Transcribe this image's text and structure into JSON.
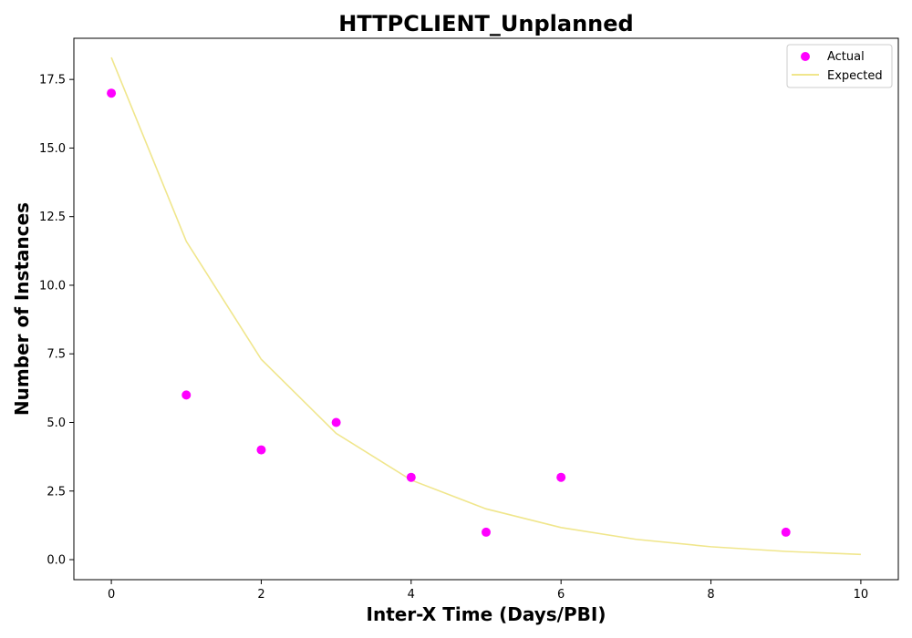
{
  "chart_data": {
    "type": "scatter",
    "title": "HTTPCLIENT_Unplanned",
    "xlabel": "Inter-X Time (Days/PBI)",
    "ylabel": "Number of Instances",
    "xlim": [
      -0.5,
      10.5
    ],
    "ylim": [
      -0.73,
      19.0
    ],
    "x_ticks": [
      0,
      2,
      4,
      6,
      8,
      10
    ],
    "x_tick_labels": [
      "0",
      "2",
      "4",
      "6",
      "8",
      "10"
    ],
    "y_ticks": [
      0.0,
      2.5,
      5.0,
      7.5,
      10.0,
      12.5,
      15.0,
      17.5
    ],
    "y_tick_labels": [
      "0.0",
      "2.5",
      "5.0",
      "7.5",
      "10.0",
      "12.5",
      "15.0",
      "17.5"
    ],
    "grid": false,
    "legend_position": "top-right",
    "series": [
      {
        "name": "Actual",
        "kind": "scatter",
        "color": "#ff00ff",
        "points": [
          {
            "x": 0,
            "y": 17
          },
          {
            "x": 1,
            "y": 6
          },
          {
            "x": 2,
            "y": 4
          },
          {
            "x": 3,
            "y": 5
          },
          {
            "x": 4,
            "y": 3
          },
          {
            "x": 5,
            "y": 1
          },
          {
            "x": 6,
            "y": 3
          },
          {
            "x": 9,
            "y": 1
          }
        ]
      },
      {
        "name": "Expected",
        "kind": "line",
        "color": "#f0e68c",
        "points": [
          {
            "x": 0,
            "y": 18.3
          },
          {
            "x": 1,
            "y": 11.6
          },
          {
            "x": 2,
            "y": 7.3
          },
          {
            "x": 3,
            "y": 4.6
          },
          {
            "x": 4,
            "y": 2.9
          },
          {
            "x": 5,
            "y": 1.85
          },
          {
            "x": 6,
            "y": 1.17
          },
          {
            "x": 7,
            "y": 0.74
          },
          {
            "x": 8,
            "y": 0.47
          },
          {
            "x": 9,
            "y": 0.3
          },
          {
            "x": 10,
            "y": 0.19
          }
        ]
      }
    ]
  }
}
